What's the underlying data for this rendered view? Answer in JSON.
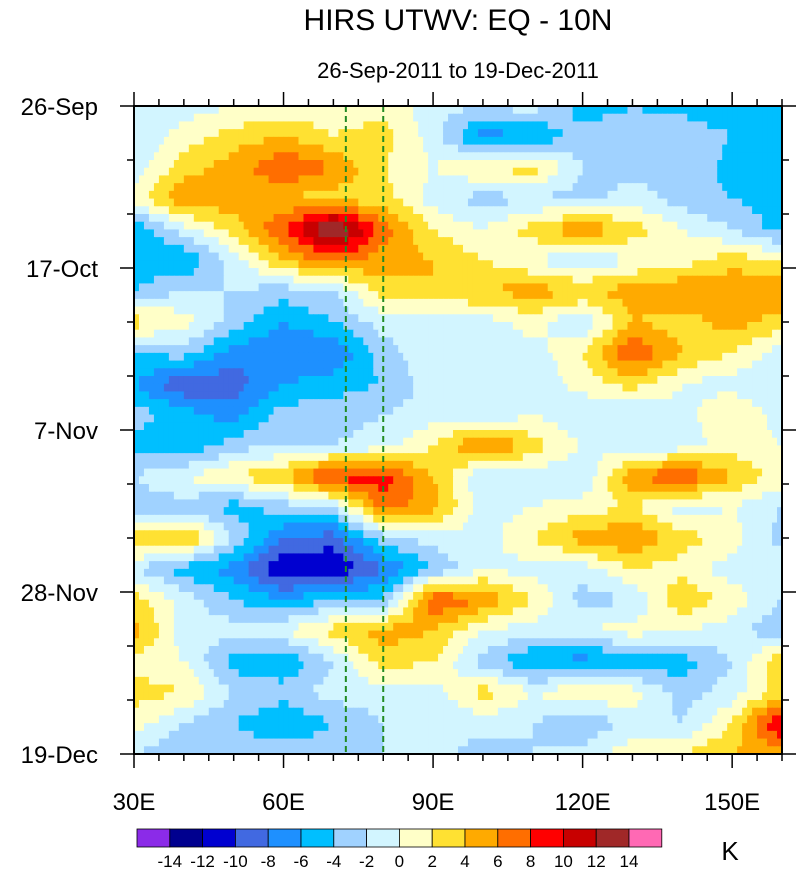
{
  "chart_data": {
    "type": "heatmap",
    "title": "HIRS UTWV: EQ - 10N",
    "subtitle": "26-Sep-2011 to 19-Dec-2011",
    "xlabel": "",
    "ylabel": "",
    "xlim": [
      30,
      160
    ],
    "ylim_days": [
      0,
      84
    ],
    "x_ticks": [
      {
        "value": 30,
        "label": "30E"
      },
      {
        "value": 60,
        "label": "60E"
      },
      {
        "value": 90,
        "label": "90E"
      },
      {
        "value": 120,
        "label": "120E"
      },
      {
        "value": 150,
        "label": "150E"
      }
    ],
    "y_ticks": [
      {
        "day": 0,
        "label": "26-Sep"
      },
      {
        "day": 21,
        "label": "17-Oct"
      },
      {
        "day": 42,
        "label": "7-Nov"
      },
      {
        "day": 63,
        "label": "28-Nov"
      },
      {
        "day": 84,
        "label": "19-Dec"
      }
    ],
    "reference_lines_lon": [
      72.5,
      80
    ],
    "reference_line_color": "#228B22",
    "grid_lon": [
      30,
      40,
      50,
      60,
      70,
      80,
      90,
      100,
      110,
      120,
      130,
      140,
      150,
      160
    ],
    "grid_days": [
      0,
      4,
      8,
      12,
      16,
      20,
      24,
      28,
      32,
      36,
      40,
      44,
      48,
      52,
      56,
      60,
      64,
      68,
      72,
      76,
      80,
      84
    ],
    "values": [
      [
        -2,
        -1,
        0,
        0,
        1,
        1,
        -1,
        -2,
        -1,
        -5,
        -4,
        -5,
        -6,
        -5
      ],
      [
        -2,
        1,
        3,
        4,
        2,
        3,
        -1,
        -7,
        -6,
        -3,
        -3,
        -2,
        -4,
        -4
      ],
      [
        -1,
        3,
        5,
        8,
        6,
        2,
        0,
        2,
        3,
        -2,
        -3,
        -2,
        -5,
        -6
      ],
      [
        1,
        6,
        5,
        4,
        3,
        3,
        -1,
        -3,
        -2,
        -3,
        -1,
        -3,
        -4,
        -5
      ],
      [
        -6,
        -1,
        3,
        8,
        15,
        7,
        2,
        0,
        3,
        6,
        3,
        0,
        -2,
        -5
      ],
      [
        -5,
        -6,
        -1,
        4,
        7,
        5,
        4,
        2,
        0,
        -2,
        0,
        1,
        3,
        2
      ],
      [
        -4,
        -2,
        -2,
        -3,
        -2,
        3,
        4,
        4,
        5,
        4,
        5,
        6,
        6,
        6
      ],
      [
        3,
        1,
        -3,
        -6,
        -4,
        -1,
        -2,
        -1,
        1,
        -2,
        4,
        3,
        5,
        3
      ],
      [
        -4,
        -3,
        -7,
        -8,
        -8,
        -3,
        0,
        -1,
        -1,
        2,
        8,
        4,
        2,
        -1
      ],
      [
        -6,
        -10,
        -9,
        -6,
        -5,
        -4,
        -1,
        -2,
        -2,
        1,
        3,
        0,
        -1,
        -2
      ],
      [
        -3,
        -5,
        -7,
        -3,
        -3,
        -2,
        -1,
        -2,
        0,
        -2,
        -2,
        -1,
        2,
        -1
      ],
      [
        -5,
        -6,
        -3,
        -2,
        -2,
        -1,
        2,
        7,
        3,
        0,
        -2,
        -1,
        1,
        0
      ],
      [
        -2,
        0,
        2,
        4,
        9,
        9,
        4,
        -2,
        -1,
        -2,
        6,
        8,
        4,
        1
      ],
      [
        -3,
        -3,
        -5,
        -3,
        -2,
        7,
        5,
        -1,
        0,
        1,
        2,
        -1,
        0,
        -2
      ],
      [
        4,
        5,
        -2,
        -8,
        -9,
        -3,
        -1,
        -1,
        2,
        5,
        6,
        3,
        1,
        -3
      ],
      [
        -2,
        -5,
        -7,
        -12,
        -12,
        -8,
        -4,
        0,
        -1,
        -1,
        2,
        1,
        -1,
        0
      ],
      [
        3,
        -1,
        -4,
        -6,
        -4,
        -4,
        8,
        6,
        2,
        -3,
        -2,
        4,
        1,
        -2
      ],
      [
        5,
        -1,
        -1,
        0,
        3,
        5,
        4,
        0,
        -1,
        0,
        1,
        0,
        -1,
        -4
      ],
      [
        1,
        0,
        -5,
        -6,
        -2,
        3,
        2,
        -3,
        -6,
        -7,
        -6,
        -5,
        -2,
        4
      ],
      [
        3,
        2,
        -2,
        -3,
        -1,
        -1,
        -1,
        3,
        0,
        2,
        1,
        -3,
        -1,
        3
      ],
      [
        1,
        -2,
        -4,
        -6,
        -4,
        -2,
        -2,
        -1,
        -2,
        -4,
        -1,
        -2,
        2,
        11
      ],
      [
        -2,
        -4,
        -3,
        -2,
        -3,
        -2,
        -1,
        -3,
        -2,
        -1,
        1,
        2,
        4,
        5
      ]
    ],
    "colorbar": {
      "unit": "K",
      "levels": [
        -14,
        -12,
        -10,
        -8,
        -6,
        -4,
        -2,
        0,
        2,
        4,
        6,
        8,
        10,
        12,
        14
      ],
      "labels": [
        "-14",
        "-12",
        "-10",
        "-8",
        "-6",
        "-4",
        "-2",
        "0",
        "2",
        "4",
        "6",
        "8",
        "10",
        "12",
        "14"
      ],
      "colors": [
        "#8B2BE8",
        "#00008F",
        "#0000D0",
        "#4169E1",
        "#1E90FF",
        "#00BFFF",
        "#A0D2FF",
        "#D2F5FF",
        "#FFFFC8",
        "#FFE132",
        "#FFAA00",
        "#FF6E00",
        "#FF0000",
        "#C80000",
        "#A02828",
        "#FF69B4"
      ]
    }
  }
}
